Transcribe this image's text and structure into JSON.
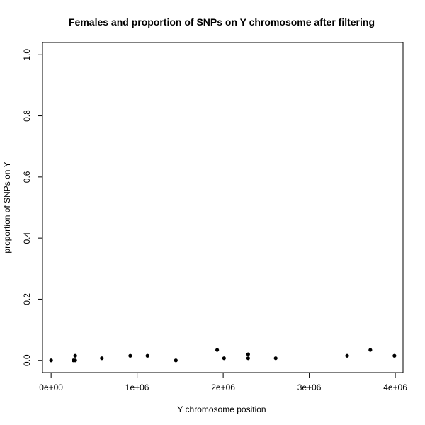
{
  "chart_data": {
    "type": "scatter",
    "title": "Females and proportion of SNPs on Y chromosome after filtering",
    "xlabel": "Y chromosome position",
    "ylabel": "proportion of SNPs on Y",
    "xlim": [
      -100000,
      4090000
    ],
    "ylim": [
      -0.04,
      1.04
    ],
    "x_ticks": [
      {
        "value": 0,
        "label": "0e+00"
      },
      {
        "value": 1000000,
        "label": "1e+06"
      },
      {
        "value": 2000000,
        "label": "2e+06"
      },
      {
        "value": 3000000,
        "label": "3e+06"
      },
      {
        "value": 4000000,
        "label": "4e+06"
      }
    ],
    "y_ticks": [
      {
        "value": 0.0,
        "label": "0.0"
      },
      {
        "value": 0.2,
        "label": "0.2"
      },
      {
        "value": 0.4,
        "label": "0.4"
      },
      {
        "value": 0.6,
        "label": "0.6"
      },
      {
        "value": 0.8,
        "label": "0.8"
      },
      {
        "value": 1.0,
        "label": "1.0"
      }
    ],
    "grid": false,
    "points": [
      {
        "x": 0,
        "y": 0.0
      },
      {
        "x": 260000,
        "y": 0.0
      },
      {
        "x": 280000,
        "y": 0.0
      },
      {
        "x": 280000,
        "y": 0.015
      },
      {
        "x": 590000,
        "y": 0.007
      },
      {
        "x": 920000,
        "y": 0.015
      },
      {
        "x": 1120000,
        "y": 0.015
      },
      {
        "x": 1450000,
        "y": 0.0
      },
      {
        "x": 1930000,
        "y": 0.034
      },
      {
        "x": 2010000,
        "y": 0.007
      },
      {
        "x": 2290000,
        "y": 0.02
      },
      {
        "x": 2290000,
        "y": 0.007
      },
      {
        "x": 2610000,
        "y": 0.007
      },
      {
        "x": 3440000,
        "y": 0.015
      },
      {
        "x": 3710000,
        "y": 0.034
      },
      {
        "x": 3990000,
        "y": 0.015
      }
    ],
    "marker_color": "#000000"
  }
}
